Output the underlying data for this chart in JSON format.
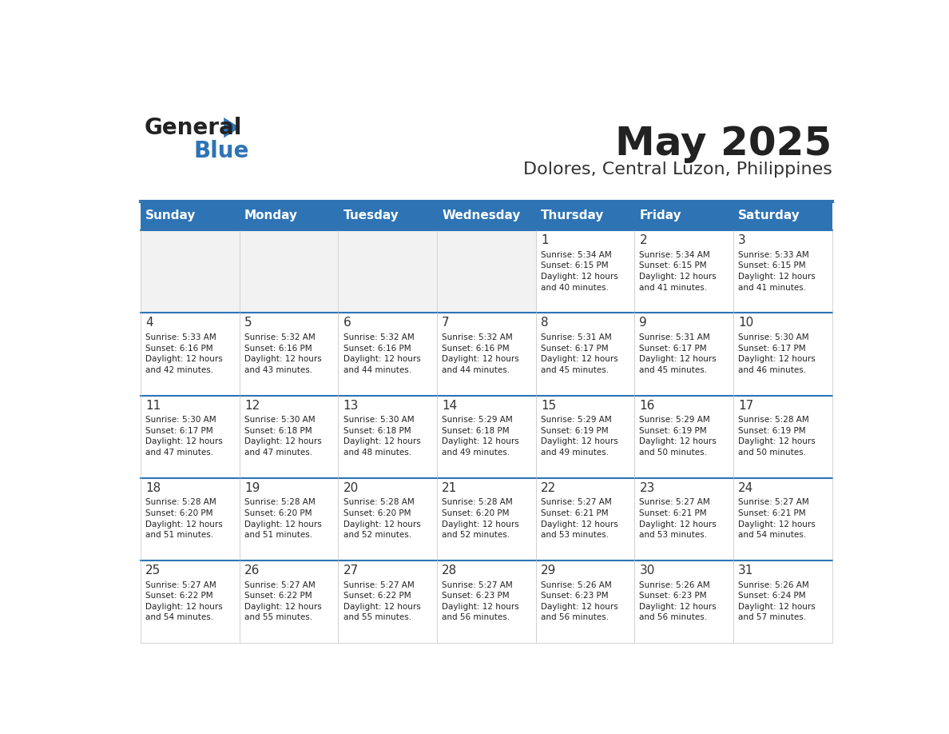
{
  "title": "May 2025",
  "subtitle": "Dolores, Central Luzon, Philippines",
  "days_of_week": [
    "Sunday",
    "Monday",
    "Tuesday",
    "Wednesday",
    "Thursday",
    "Friday",
    "Saturday"
  ],
  "header_bg": "#2E74B5",
  "header_text": "#FFFFFF",
  "cell_bg_empty": "#F2F2F2",
  "cell_bg_filled": "#FFFFFF",
  "border_color": "#2E74B5",
  "grid_color": "#CCCCCC",
  "text_color": "#222222",
  "day_num_color": "#333333",
  "title_color": "#222222",
  "subtitle_color": "#333333",
  "logo_general_color": "#222222",
  "logo_blue_color": "#2E74B5",
  "calendar": [
    [
      {
        "day": null,
        "info": null
      },
      {
        "day": null,
        "info": null
      },
      {
        "day": null,
        "info": null
      },
      {
        "day": null,
        "info": null
      },
      {
        "day": 1,
        "info": "Sunrise: 5:34 AM\nSunset: 6:15 PM\nDaylight: 12 hours\nand 40 minutes."
      },
      {
        "day": 2,
        "info": "Sunrise: 5:34 AM\nSunset: 6:15 PM\nDaylight: 12 hours\nand 41 minutes."
      },
      {
        "day": 3,
        "info": "Sunrise: 5:33 AM\nSunset: 6:15 PM\nDaylight: 12 hours\nand 41 minutes."
      }
    ],
    [
      {
        "day": 4,
        "info": "Sunrise: 5:33 AM\nSunset: 6:16 PM\nDaylight: 12 hours\nand 42 minutes."
      },
      {
        "day": 5,
        "info": "Sunrise: 5:32 AM\nSunset: 6:16 PM\nDaylight: 12 hours\nand 43 minutes."
      },
      {
        "day": 6,
        "info": "Sunrise: 5:32 AM\nSunset: 6:16 PM\nDaylight: 12 hours\nand 44 minutes."
      },
      {
        "day": 7,
        "info": "Sunrise: 5:32 AM\nSunset: 6:16 PM\nDaylight: 12 hours\nand 44 minutes."
      },
      {
        "day": 8,
        "info": "Sunrise: 5:31 AM\nSunset: 6:17 PM\nDaylight: 12 hours\nand 45 minutes."
      },
      {
        "day": 9,
        "info": "Sunrise: 5:31 AM\nSunset: 6:17 PM\nDaylight: 12 hours\nand 45 minutes."
      },
      {
        "day": 10,
        "info": "Sunrise: 5:30 AM\nSunset: 6:17 PM\nDaylight: 12 hours\nand 46 minutes."
      }
    ],
    [
      {
        "day": 11,
        "info": "Sunrise: 5:30 AM\nSunset: 6:17 PM\nDaylight: 12 hours\nand 47 minutes."
      },
      {
        "day": 12,
        "info": "Sunrise: 5:30 AM\nSunset: 6:18 PM\nDaylight: 12 hours\nand 47 minutes."
      },
      {
        "day": 13,
        "info": "Sunrise: 5:30 AM\nSunset: 6:18 PM\nDaylight: 12 hours\nand 48 minutes."
      },
      {
        "day": 14,
        "info": "Sunrise: 5:29 AM\nSunset: 6:18 PM\nDaylight: 12 hours\nand 49 minutes."
      },
      {
        "day": 15,
        "info": "Sunrise: 5:29 AM\nSunset: 6:19 PM\nDaylight: 12 hours\nand 49 minutes."
      },
      {
        "day": 16,
        "info": "Sunrise: 5:29 AM\nSunset: 6:19 PM\nDaylight: 12 hours\nand 50 minutes."
      },
      {
        "day": 17,
        "info": "Sunrise: 5:28 AM\nSunset: 6:19 PM\nDaylight: 12 hours\nand 50 minutes."
      }
    ],
    [
      {
        "day": 18,
        "info": "Sunrise: 5:28 AM\nSunset: 6:20 PM\nDaylight: 12 hours\nand 51 minutes."
      },
      {
        "day": 19,
        "info": "Sunrise: 5:28 AM\nSunset: 6:20 PM\nDaylight: 12 hours\nand 51 minutes."
      },
      {
        "day": 20,
        "info": "Sunrise: 5:28 AM\nSunset: 6:20 PM\nDaylight: 12 hours\nand 52 minutes."
      },
      {
        "day": 21,
        "info": "Sunrise: 5:28 AM\nSunset: 6:20 PM\nDaylight: 12 hours\nand 52 minutes."
      },
      {
        "day": 22,
        "info": "Sunrise: 5:27 AM\nSunset: 6:21 PM\nDaylight: 12 hours\nand 53 minutes."
      },
      {
        "day": 23,
        "info": "Sunrise: 5:27 AM\nSunset: 6:21 PM\nDaylight: 12 hours\nand 53 minutes."
      },
      {
        "day": 24,
        "info": "Sunrise: 5:27 AM\nSunset: 6:21 PM\nDaylight: 12 hours\nand 54 minutes."
      }
    ],
    [
      {
        "day": 25,
        "info": "Sunrise: 5:27 AM\nSunset: 6:22 PM\nDaylight: 12 hours\nand 54 minutes."
      },
      {
        "day": 26,
        "info": "Sunrise: 5:27 AM\nSunset: 6:22 PM\nDaylight: 12 hours\nand 55 minutes."
      },
      {
        "day": 27,
        "info": "Sunrise: 5:27 AM\nSunset: 6:22 PM\nDaylight: 12 hours\nand 55 minutes."
      },
      {
        "day": 28,
        "info": "Sunrise: 5:27 AM\nSunset: 6:23 PM\nDaylight: 12 hours\nand 56 minutes."
      },
      {
        "day": 29,
        "info": "Sunrise: 5:26 AM\nSunset: 6:23 PM\nDaylight: 12 hours\nand 56 minutes."
      },
      {
        "day": 30,
        "info": "Sunrise: 5:26 AM\nSunset: 6:23 PM\nDaylight: 12 hours\nand 56 minutes."
      },
      {
        "day": 31,
        "info": "Sunrise: 5:26 AM\nSunset: 6:24 PM\nDaylight: 12 hours\nand 57 minutes."
      }
    ]
  ]
}
